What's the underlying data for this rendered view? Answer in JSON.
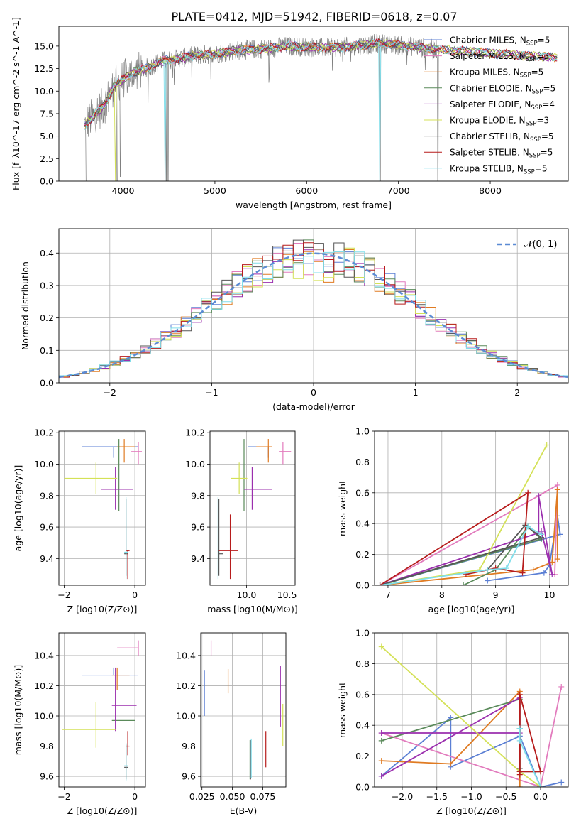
{
  "figure_title": "PLATE=0412, MJD=51942, FIBERID=0618, z=0.07",
  "colors": {
    "Chabrier MILES": "#5b7fd4",
    "Salpeter MILES": "#e27bbd",
    "Kroupa MILES": "#e07b22",
    "Chabrier ELODIE": "#5a8a5a",
    "Salpeter ELODIE": "#9b2fae",
    "Kroupa ELODIE": "#d4e157",
    "Chabrier STELIB": "#555555",
    "Salpeter STELIB": "#b71c1c",
    "Kroupa STELIB": "#80deea",
    "data": "#808080",
    "gauss": "#5b8bd4",
    "grid": "#b0b0b0"
  },
  "chart_data": [
    {
      "id": "spectrum",
      "type": "line",
      "title": "PLATE=0412, MJD=51942, FIBERID=0618, z=0.07",
      "xlabel": "wavelength [Angstrom, rest frame]",
      "ylabel": "Flux [f_λ10^-17 erg cm^-2 s^-1 A^-1]",
      "xlim": [
        3300,
        8850
      ],
      "ylim": [
        0,
        17.2
      ],
      "xticks": [
        4000,
        5000,
        6000,
        7000,
        8000
      ],
      "yticks": [
        0.0,
        2.5,
        5.0,
        7.5,
        10.0,
        12.5,
        15.0
      ],
      "grid": false,
      "legend_position": "top-right",
      "legend": [
        {
          "label": "Chabrier MILES, N_SSP=5"
        },
        {
          "label": "Salpeter MILES, N_SSP=3"
        },
        {
          "label": "Kroupa MILES, N_SSP=5"
        },
        {
          "label": "Chabrier ELODIE, N_SSP=5"
        },
        {
          "label": "Salpeter ELODIE, N_SSP=4"
        },
        {
          "label": "Kroupa ELODIE, N_SSP=3"
        },
        {
          "label": "Chabrier STELIB, N_SSP=5"
        },
        {
          "label": "Salpeter STELIB, N_SSP=5"
        },
        {
          "label": "Kroupa STELIB, N_SSP=5"
        }
      ],
      "data_range": [
        3580,
        7440
      ],
      "continuum": [
        [
          3580,
          6.2
        ],
        [
          3700,
          7.5
        ],
        [
          3800,
          8.5
        ],
        [
          3900,
          10.6
        ],
        [
          4000,
          11.3
        ],
        [
          4100,
          12.0
        ],
        [
          4200,
          12.4
        ],
        [
          4300,
          12.7
        ],
        [
          4400,
          13.3
        ],
        [
          4600,
          13.6
        ],
        [
          4800,
          14.0
        ],
        [
          5000,
          14.1
        ],
        [
          5200,
          14.5
        ],
        [
          5400,
          14.6
        ],
        [
          5600,
          14.8
        ],
        [
          5800,
          15.0
        ],
        [
          6000,
          14.9
        ],
        [
          6200,
          14.8
        ],
        [
          6400,
          14.9
        ],
        [
          6600,
          15.1
        ],
        [
          6800,
          15.3
        ],
        [
          7000,
          15.1
        ],
        [
          7200,
          14.9
        ],
        [
          7440,
          14.6
        ]
      ],
      "model_range": [
        3580,
        8730
      ],
      "model_tail": [
        [
          7440,
          14.6
        ],
        [
          7600,
          14.5
        ],
        [
          7800,
          14.4
        ],
        [
          8000,
          14.2
        ],
        [
          8200,
          14.1
        ],
        [
          8400,
          13.9
        ],
        [
          8600,
          13.8
        ],
        [
          8730,
          13.7
        ]
      ],
      "dips": [
        [
          3600,
          0
        ],
        [
          3935,
          0
        ],
        [
          3970,
          0.5
        ],
        [
          4470,
          0
        ],
        [
          4490,
          0
        ],
        [
          6800,
          0
        ],
        [
          7430,
          0
        ]
      ]
    },
    {
      "id": "residuals",
      "type": "bar",
      "xlabel": "(data-model)/error",
      "ylabel": "Normed distribution",
      "xlim": [
        -2.5,
        2.5
      ],
      "ylim": [
        0,
        0.475
      ],
      "xticks": [
        -2,
        -1,
        0,
        1,
        2
      ],
      "yticks": [
        0.0,
        0.1,
        0.2,
        0.3,
        0.4
      ],
      "grid": true,
      "legend_position": "top-right",
      "legend": [
        {
          "label": "𝒩(0, 1)"
        }
      ],
      "bin_width": 0.1,
      "gauss": {
        "mean": 0,
        "sigma": 1
      }
    },
    {
      "id": "age_vs_Z",
      "type": "scatter",
      "xlabel": "Z [log10(Z/Z⊙)]",
      "ylabel": "age  [log10(age/yr)]",
      "xlim": [
        -2.15,
        0.3
      ],
      "ylim": [
        9.23,
        10.21
      ],
      "xticks": [
        -2,
        0
      ],
      "yticks": [
        9.4,
        9.6,
        9.8,
        10.0,
        10.2
      ],
      "grid": true,
      "points": [
        {
          "model": "Chabrier MILES",
          "x": -0.6,
          "xerr": [
            0.9,
            0.7
          ],
          "y": 10.11,
          "yerr": [
            0.07,
            0.0
          ]
        },
        {
          "model": "Salpeter MILES",
          "x": 0.1,
          "xerr": [
            0.2,
            0.1
          ],
          "y": 10.08,
          "yerr": [
            0.08,
            0.06
          ]
        },
        {
          "model": "Kroupa MILES",
          "x": -0.3,
          "xerr": [
            0.2,
            0.3
          ],
          "y": 10.11,
          "yerr": [
            0.1,
            0.05
          ]
        },
        {
          "model": "Chabrier ELODIE",
          "x": -0.45,
          "xerr": [
            0.15,
            0.0
          ],
          "y": 9.84,
          "yerr": [
            0.14,
            0.32
          ]
        },
        {
          "model": "Salpeter ELODIE",
          "x": -0.55,
          "xerr": [
            0.4,
            0.5
          ],
          "y": 9.84,
          "yerr": [
            0.13,
            0.14
          ]
        },
        {
          "model": "Kroupa ELODIE",
          "x": -1.1,
          "xerr": [
            0.9,
            0.6
          ],
          "y": 9.91,
          "yerr": [
            0.1,
            0.1
          ]
        },
        {
          "model": "Chabrier STELIB",
          "x": -0.25,
          "xerr": [
            0.05,
            0.05
          ],
          "y": 9.43,
          "yerr": [
            0.14,
            0.35
          ]
        },
        {
          "model": "Salpeter STELIB",
          "x": -0.2,
          "xerr": [
            0.05,
            0.05
          ],
          "y": 9.45,
          "yerr": [
            0.18,
            0.0
          ]
        },
        {
          "model": "Kroupa STELIB",
          "x": -0.25,
          "xerr": [
            0.05,
            0.05
          ],
          "y": 9.44,
          "yerr": [
            0.17,
            0.35
          ]
        }
      ]
    },
    {
      "id": "age_vs_mass",
      "type": "scatter",
      "xlabel": "mass [log10(M/M⊙)]",
      "ylabel": "",
      "xlim": [
        9.55,
        10.6
      ],
      "ylim": [
        9.23,
        10.21
      ],
      "xticks": [
        10.0,
        10.5
      ],
      "yticks": [
        9.4,
        9.6,
        9.8,
        10.0,
        10.2
      ],
      "grid": true,
      "points": [
        {
          "model": "Chabrier MILES",
          "x": 10.27,
          "xerr": [
            0.25,
            0.0
          ],
          "y": 10.11,
          "yerr": [
            0.07,
            0.0
          ]
        },
        {
          "model": "Salpeter MILES",
          "x": 10.45,
          "xerr": [
            0.05,
            0.1
          ],
          "y": 10.08,
          "yerr": [
            0.08,
            0.06
          ]
        },
        {
          "model": "Kroupa MILES",
          "x": 10.27,
          "xerr": [
            0.15,
            0.05
          ],
          "y": 10.11,
          "yerr": [
            0.1,
            0.05
          ]
        },
        {
          "model": "Chabrier ELODIE",
          "x": 9.97,
          "xerr": [
            0.0,
            0.0
          ],
          "y": 9.84,
          "yerr": [
            0.14,
            0.32
          ]
        },
        {
          "model": "Salpeter ELODIE",
          "x": 10.07,
          "xerr": [
            0.1,
            0.25
          ],
          "y": 9.84,
          "yerr": [
            0.13,
            0.14
          ]
        },
        {
          "model": "Kroupa ELODIE",
          "x": 9.91,
          "xerr": [
            0.1,
            0.1
          ],
          "y": 9.91,
          "yerr": [
            0.1,
            0.1
          ]
        },
        {
          "model": "Chabrier STELIB",
          "x": 9.66,
          "xerr": [
            0.0,
            0.05
          ],
          "y": 9.43,
          "yerr": [
            0.14,
            0.35
          ]
        },
        {
          "model": "Salpeter STELIB",
          "x": 9.8,
          "xerr": [
            0.14,
            0.1
          ],
          "y": 9.45,
          "yerr": [
            0.18,
            0.23
          ]
        },
        {
          "model": "Kroupa STELIB",
          "x": 9.65,
          "xerr": [
            0.0,
            0.0
          ],
          "y": 9.44,
          "yerr": [
            0.17,
            0.35
          ]
        }
      ]
    },
    {
      "id": "weight_vs_age",
      "type": "line",
      "xlabel": "age  [log10(age/yr)]",
      "ylabel": "mass weight",
      "xlim": [
        6.75,
        10.35
      ],
      "ylim": [
        0,
        1.0
      ],
      "xticks": [
        7,
        8,
        9,
        10
      ],
      "yticks": [
        0.0,
        0.2,
        0.4,
        0.6,
        0.8,
        1.0
      ],
      "grid": true,
      "series": [
        {
          "model": "Chabrier MILES",
          "x": [
            8.85,
            9.9,
            10.0,
            10.15,
            10.2,
            6.85
          ],
          "y": [
            0.03,
            0.08,
            0.13,
            0.45,
            0.33,
            0.0
          ]
        },
        {
          "model": "Salpeter MILES",
          "x": [
            6.85,
            10.15,
            10.1
          ],
          "y": [
            0.0,
            0.65,
            0.07
          ]
        },
        {
          "model": "Kroupa MILES",
          "x": [
            6.85,
            9.7,
            10.05,
            10.15,
            10.15
          ],
          "y": [
            0.0,
            0.1,
            0.15,
            0.62,
            0.17
          ]
        },
        {
          "model": "Chabrier ELODIE",
          "x": [
            8.4,
            9.0,
            9.6,
            9.85,
            6.85
          ],
          "y": [
            0.0,
            0.1,
            0.38,
            0.3,
            0.0
          ]
        },
        {
          "model": "Salpeter ELODIE",
          "x": [
            6.85,
            9.8,
            9.8,
            10.05,
            9.85
          ],
          "y": [
            0.0,
            0.34,
            0.58,
            0.07,
            0.35
          ]
        },
        {
          "model": "Kroupa ELODIE",
          "x": [
            6.85,
            8.7,
            9.95
          ],
          "y": [
            0.0,
            0.1,
            0.91
          ]
        },
        {
          "model": "Chabrier STELIB",
          "x": [
            8.85,
            9.55,
            9.85,
            6.85
          ],
          "y": [
            0.1,
            0.39,
            0.31,
            0.0
          ]
        },
        {
          "model": "Salpeter STELIB",
          "x": [
            8.45,
            9.0,
            9.5,
            9.6,
            6.85
          ],
          "y": [
            0.07,
            0.11,
            0.08,
            0.6,
            0.0
          ]
        },
        {
          "model": "Kroupa STELIB",
          "x": [
            6.85,
            8.85,
            9.2,
            9.6,
            9.85
          ],
          "y": [
            0.0,
            0.1,
            0.11,
            0.38,
            0.33
          ]
        }
      ]
    },
    {
      "id": "mass_vs_Z",
      "type": "scatter",
      "xlabel": "Z [log10(Z/Z⊙)]",
      "ylabel": "mass [log10(M/M⊙)]",
      "xlim": [
        -2.15,
        0.3
      ],
      "ylim": [
        9.53,
        10.55
      ],
      "xticks": [
        -2,
        0
      ],
      "yticks": [
        9.6,
        9.8,
        10.0,
        10.2,
        10.4
      ],
      "grid": true,
      "points": [
        {
          "model": "Chabrier MILES",
          "x": -0.6,
          "xerr": [
            0.9,
            0.7
          ],
          "y": 10.27,
          "yerr": [
            0.0,
            0.05
          ]
        },
        {
          "model": "Salpeter MILES",
          "x": 0.1,
          "xerr": [
            0.6,
            0.0
          ],
          "y": 10.45,
          "yerr": [
            0.05,
            0.05
          ]
        },
        {
          "model": "Kroupa MILES",
          "x": -0.5,
          "xerr": [
            0.15,
            0.35
          ],
          "y": 10.27,
          "yerr": [
            0.1,
            0.05
          ]
        },
        {
          "model": "Chabrier ELODIE",
          "x": -0.3,
          "xerr": [
            0.35,
            0.3
          ],
          "y": 9.97,
          "yerr": [
            0.0,
            0.0
          ]
        },
        {
          "model": "Salpeter ELODIE",
          "x": -0.55,
          "xerr": [
            0.1,
            0.6
          ],
          "y": 10.07,
          "yerr": [
            0.17,
            0.25
          ]
        },
        {
          "model": "Kroupa ELODIE",
          "x": -1.1,
          "xerr": [
            0.95,
            0.55
          ],
          "y": 9.91,
          "yerr": [
            0.12,
            0.18
          ]
        },
        {
          "model": "Chabrier STELIB",
          "x": -0.25,
          "xerr": [
            0.05,
            0.05
          ],
          "y": 9.66,
          "yerr": [
            0.08,
            0.15
          ]
        },
        {
          "model": "Salpeter STELIB",
          "x": -0.2,
          "xerr": [
            0.05,
            0.05
          ],
          "y": 9.8,
          "yerr": [
            0.06,
            0.1
          ]
        },
        {
          "model": "Kroupa STELIB",
          "x": -0.25,
          "xerr": [
            0.05,
            0.05
          ],
          "y": 9.67,
          "yerr": [
            0.1,
            0.15
          ]
        }
      ]
    },
    {
      "id": "mass_vs_ebv",
      "type": "scatter",
      "xlabel": "E(B-V)",
      "ylabel": "",
      "xlim": [
        0.024,
        0.094
      ],
      "ylim": [
        9.53,
        10.55
      ],
      "xticks": [
        0.025,
        0.05,
        0.075
      ],
      "yticks": [
        9.6,
        9.8,
        10.0,
        10.2,
        10.4
      ],
      "grid": true,
      "points": [
        {
          "model": "Chabrier MILES",
          "x": 0.027,
          "y": 10.15,
          "yerr": [
            0.15,
            0.15
          ]
        },
        {
          "model": "Salpeter MILES",
          "x": 0.0325,
          "y": 10.45,
          "yerr": [
            0.05,
            0.05
          ]
        },
        {
          "model": "Kroupa MILES",
          "x": 0.0465,
          "y": 10.23,
          "yerr": [
            0.08,
            0.08
          ]
        },
        {
          "model": "Chabrier ELODIE",
          "x": 0.0645,
          "y": 9.71,
          "yerr": [
            0.13,
            0.13
          ]
        },
        {
          "model": "Salpeter ELODIE",
          "x": 0.0895,
          "y": 10.13,
          "yerr": [
            0.2,
            0.2
          ]
        },
        {
          "model": "Kroupa ELODIE",
          "x": 0.0915,
          "y": 9.94,
          "yerr": [
            0.14,
            0.14
          ]
        },
        {
          "model": "Chabrier STELIB",
          "x": 0.065,
          "y": 9.71,
          "yerr": [
            0.13,
            0.13
          ]
        },
        {
          "model": "Salpeter STELIB",
          "x": 0.0775,
          "y": 9.78,
          "yerr": [
            0.12,
            0.12
          ]
        },
        {
          "model": "Kroupa STELIB",
          "x": 0.0655,
          "y": 9.72,
          "yerr": [
            0.13,
            0.13
          ]
        }
      ]
    },
    {
      "id": "weight_vs_Z",
      "type": "line",
      "xlabel": "Z [log10(Z/Z⊙)]",
      "ylabel": "mass weight",
      "xlim": [
        -2.4,
        0.4
      ],
      "ylim": [
        0,
        1.0
      ],
      "xticks": [
        -2.0,
        -1.5,
        -1.0,
        -0.5,
        0.0
      ],
      "yticks": [
        0.0,
        0.2,
        0.4,
        0.6,
        0.8,
        1.0
      ],
      "grid": true,
      "series": [
        {
          "model": "Chabrier MILES",
          "x": [
            -2.3,
            -1.3,
            -1.3,
            -0.3,
            0.0,
            0.3
          ],
          "y": [
            0.07,
            0.45,
            0.13,
            0.33,
            0.0,
            0.03
          ]
        },
        {
          "model": "Salpeter MILES",
          "x": [
            -2.3,
            0.0,
            0.3
          ],
          "y": [
            0.35,
            0.0,
            0.65
          ]
        },
        {
          "model": "Kroupa MILES",
          "x": [
            -2.3,
            -1.3,
            -0.3,
            -0.3,
            -0.3
          ],
          "y": [
            0.17,
            0.15,
            0.62,
            0.1,
            0.0
          ]
        },
        {
          "model": "Chabrier ELODIE",
          "x": [
            -2.3,
            -0.3,
            -0.3,
            0.0
          ],
          "y": [
            0.3,
            0.57,
            0.1,
            0.1
          ]
        },
        {
          "model": "Salpeter ELODIE",
          "x": [
            -2.3,
            -0.3,
            -0.3,
            -2.3
          ],
          "y": [
            0.07,
            0.58,
            0.35,
            0.35
          ]
        },
        {
          "model": "Kroupa ELODIE",
          "x": [
            -2.3,
            -0.3,
            0.0
          ],
          "y": [
            0.91,
            0.1,
            0.0
          ]
        },
        {
          "model": "Chabrier STELIB",
          "x": [
            -0.3,
            -0.3,
            -0.3
          ],
          "y": [
            0.1,
            0.12,
            0.38
          ]
        },
        {
          "model": "Salpeter STELIB",
          "x": [
            -0.3,
            -0.3,
            0.0,
            -0.3
          ],
          "y": [
            0.08,
            0.6,
            0.1,
            0.1
          ]
        },
        {
          "model": "Kroupa STELIB",
          "x": [
            -0.3,
            -0.3,
            0.0
          ],
          "y": [
            0.38,
            0.3,
            0.0
          ]
        }
      ]
    }
  ]
}
